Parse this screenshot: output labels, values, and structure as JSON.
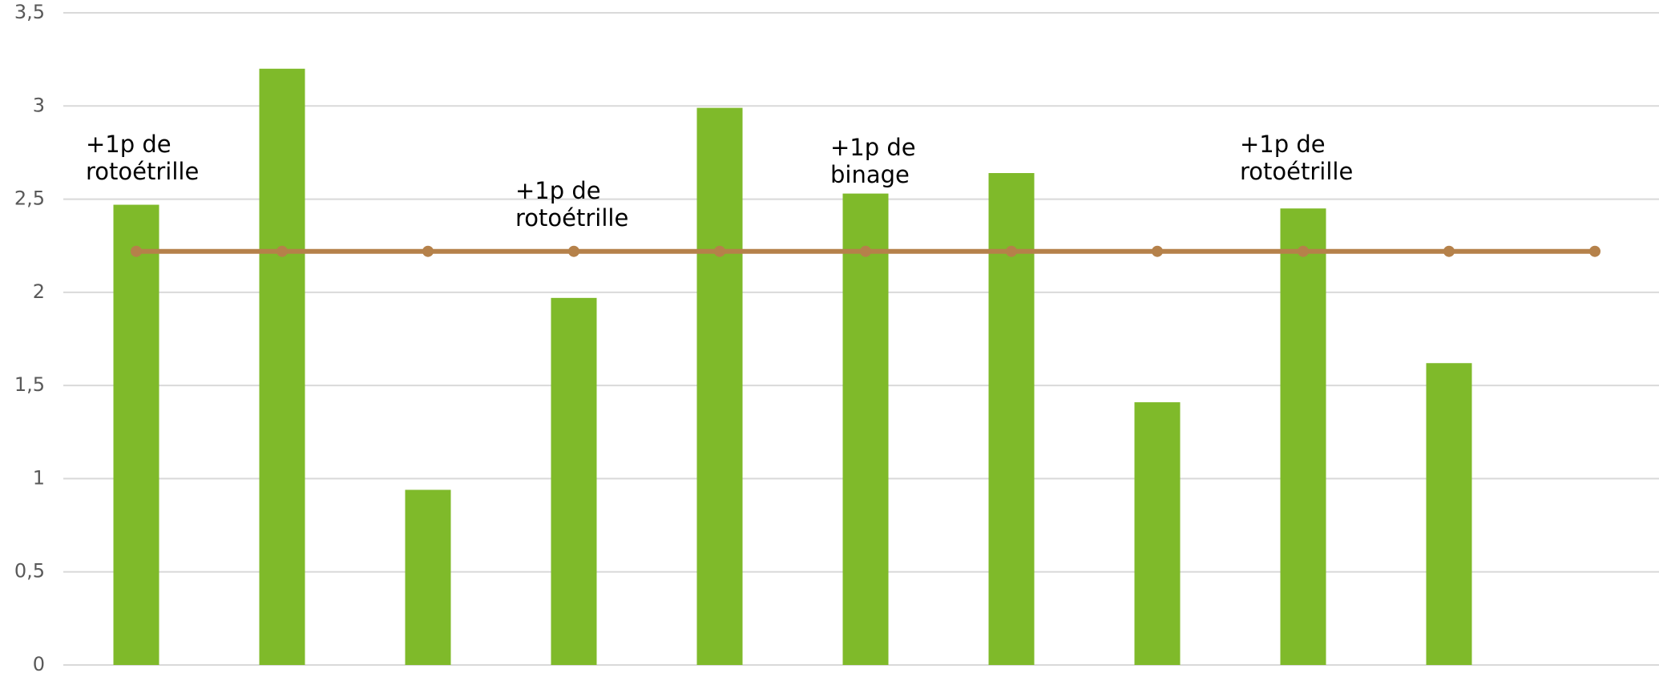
{
  "chart_data": {
    "type": "bar",
    "categories": [
      null,
      null,
      null,
      null,
      null,
      null,
      null,
      null,
      null,
      null,
      null
    ],
    "series": [
      {
        "type": "bar",
        "color": "#7fba2a",
        "values": [
          2.47,
          3.2,
          0.94,
          1.97,
          2.99,
          2.53,
          2.64,
          1.41,
          2.45,
          1.62,
          null
        ]
      },
      {
        "type": "line",
        "color": "#b5814a",
        "values": [
          2.22,
          2.22,
          2.22,
          2.22,
          2.22,
          2.22,
          2.22,
          2.22,
          2.22,
          2.22,
          2.22
        ]
      }
    ],
    "ylim": [
      0,
      3.5
    ],
    "yticks": [
      0,
      {
        "value": 0.5,
        "label": "0,5"
      },
      1,
      {
        "value": 1.5,
        "label": "1,5"
      },
      2,
      {
        "value": 2.5,
        "label": "2,5"
      },
      3,
      {
        "value": 3.5,
        "label": "3,5"
      }
    ],
    "grid": true,
    "annotations": [
      [
        "+1p de",
        "rotoétrille"
      ],
      [
        "+1p de",
        "rotoétrille"
      ],
      [
        "+1p de",
        "binage"
      ],
      [
        "+1p de",
        "rotoétrille"
      ]
    ]
  }
}
